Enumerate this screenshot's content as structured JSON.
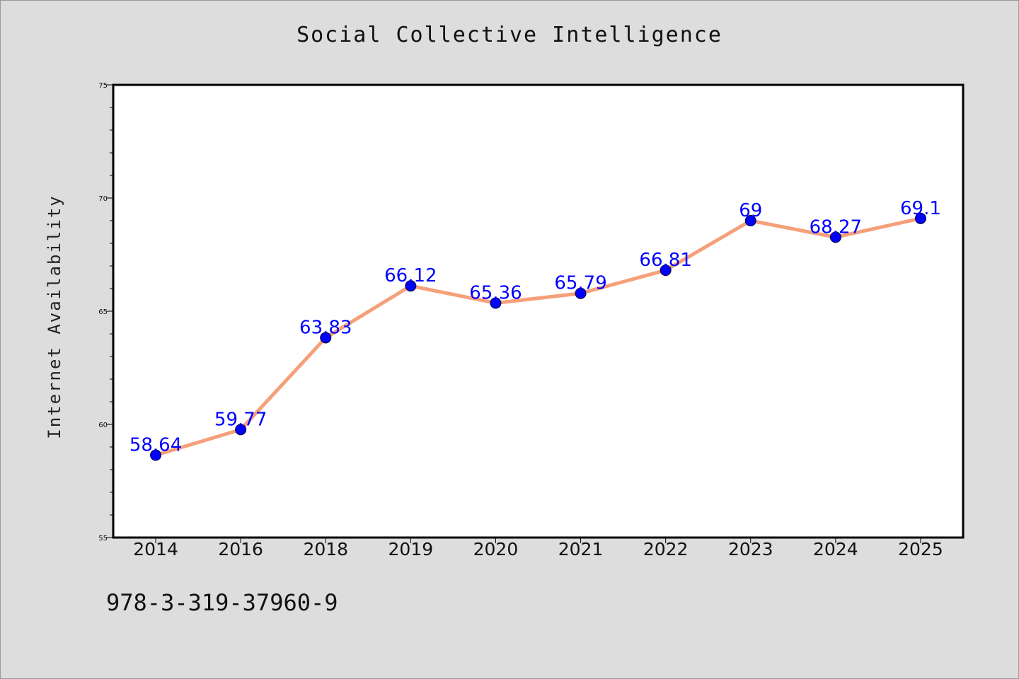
{
  "chart_data": {
    "type": "line",
    "title": "Social Collective Intelligence",
    "xlabel": "",
    "ylabel": "Internet Availability",
    "categories": [
      "2014",
      "2016",
      "2018",
      "2019",
      "2020",
      "2021",
      "2022",
      "2023",
      "2024",
      "2025"
    ],
    "series": [
      {
        "values": [
          58.64,
          59.77,
          63.83,
          66.12,
          65.36,
          65.79,
          66.81,
          69,
          68.27,
          69.1
        ],
        "labels": [
          "58.64",
          "59.77",
          "63.83",
          "66.12",
          "65.36",
          "65.79",
          "66.81",
          "69",
          "68.27",
          "69.1"
        ],
        "line_color": "#f5a07a",
        "marker_color": "#0000ff",
        "label_color": "#0000ff"
      }
    ],
    "ylim": [
      55,
      75
    ],
    "yticks": [
      55,
      60,
      65,
      70,
      75
    ],
    "ytick_labels": [
      "55",
      "60",
      "65",
      "70",
      "75"
    ],
    "grid": false,
    "legend": "none"
  },
  "footnote": "978-3-319-37960-9",
  "colors": {
    "background": "#dddddd",
    "plot_background": "#ffffff",
    "axis": "#000000"
  }
}
